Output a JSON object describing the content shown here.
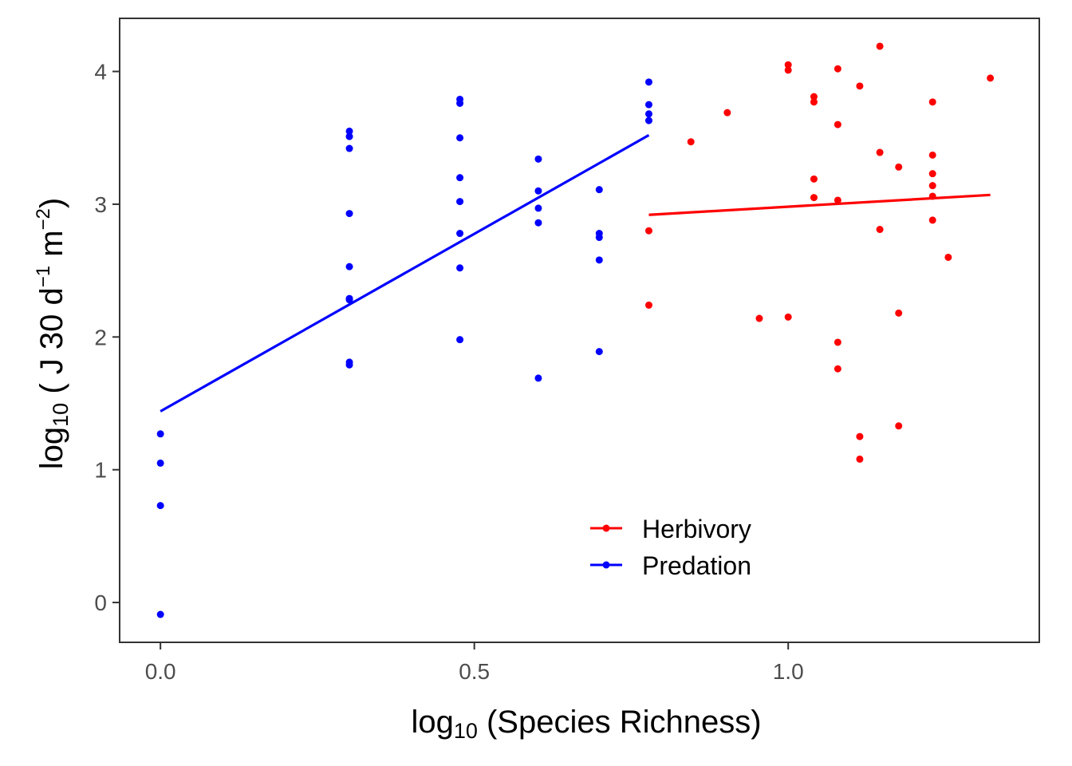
{
  "chart_data": {
    "type": "scatter",
    "xlabel": {
      "base": "log",
      "sub": "10",
      "rest": " (Species Richness)"
    },
    "ylabel": {
      "base": "log",
      "sub": "10",
      "rest": " ( J 30 d",
      "sup1": "−1",
      "mid": " m",
      "sup2": "−2",
      "end": ")"
    },
    "xlim": [
      -0.065,
      1.4
    ],
    "ylim": [
      -0.3,
      4.4
    ],
    "xticks": [
      0.0,
      0.5,
      1.0
    ],
    "xtick_labels": [
      "0.0",
      "0.5",
      "1.0"
    ],
    "yticks": [
      0,
      1,
      2,
      3,
      4
    ],
    "ytick_labels": [
      "0",
      "1",
      "2",
      "3",
      "4"
    ],
    "grid": false,
    "legend_position": "bottom-center",
    "series": [
      {
        "name": "Herbivory",
        "color": "#ff0000",
        "points": [
          [
            0.778,
            2.8
          ],
          [
            0.778,
            2.24
          ],
          [
            0.845,
            3.47
          ],
          [
            0.903,
            3.69
          ],
          [
            0.954,
            2.14
          ],
          [
            1.0,
            4.05
          ],
          [
            1.0,
            4.01
          ],
          [
            1.0,
            2.15
          ],
          [
            1.041,
            3.81
          ],
          [
            1.041,
            3.77
          ],
          [
            1.041,
            3.19
          ],
          [
            1.041,
            3.05
          ],
          [
            1.079,
            4.02
          ],
          [
            1.079,
            3.6
          ],
          [
            1.079,
            3.03
          ],
          [
            1.079,
            1.96
          ],
          [
            1.079,
            1.76
          ],
          [
            1.114,
            3.89
          ],
          [
            1.114,
            1.25
          ],
          [
            1.114,
            1.08
          ],
          [
            1.146,
            4.19
          ],
          [
            1.146,
            3.39
          ],
          [
            1.146,
            2.81
          ],
          [
            1.176,
            3.28
          ],
          [
            1.176,
            2.18
          ],
          [
            1.176,
            1.33
          ],
          [
            1.23,
            3.77
          ],
          [
            1.23,
            3.37
          ],
          [
            1.23,
            3.23
          ],
          [
            1.23,
            3.14
          ],
          [
            1.23,
            3.06
          ],
          [
            1.23,
            2.88
          ],
          [
            1.255,
            2.6
          ],
          [
            1.322,
            3.95
          ]
        ],
        "fit": [
          [
            0.778,
            2.92
          ],
          [
            1.322,
            3.07
          ]
        ]
      },
      {
        "name": "Predation",
        "color": "#0000ff",
        "points": [
          [
            0.0,
            1.27
          ],
          [
            0.0,
            1.05
          ],
          [
            0.0,
            0.73
          ],
          [
            0.0,
            -0.09
          ],
          [
            0.301,
            3.55
          ],
          [
            0.301,
            3.51
          ],
          [
            0.301,
            3.42
          ],
          [
            0.301,
            2.93
          ],
          [
            0.301,
            2.53
          ],
          [
            0.301,
            2.29
          ],
          [
            0.301,
            2.28
          ],
          [
            0.301,
            1.81
          ],
          [
            0.301,
            1.79
          ],
          [
            0.477,
            3.79
          ],
          [
            0.477,
            3.76
          ],
          [
            0.477,
            3.5
          ],
          [
            0.477,
            3.2
          ],
          [
            0.477,
            3.02
          ],
          [
            0.477,
            2.78
          ],
          [
            0.477,
            2.52
          ],
          [
            0.477,
            1.98
          ],
          [
            0.602,
            3.34
          ],
          [
            0.602,
            3.1
          ],
          [
            0.602,
            2.97
          ],
          [
            0.602,
            2.86
          ],
          [
            0.602,
            1.69
          ],
          [
            0.699,
            3.11
          ],
          [
            0.699,
            2.78
          ],
          [
            0.699,
            2.75
          ],
          [
            0.699,
            2.58
          ],
          [
            0.699,
            1.89
          ],
          [
            0.778,
            3.92
          ],
          [
            0.778,
            3.75
          ],
          [
            0.778,
            3.68
          ],
          [
            0.778,
            3.63
          ]
        ],
        "fit": [
          [
            0.0,
            1.44
          ],
          [
            0.778,
            3.52
          ]
        ]
      }
    ]
  }
}
